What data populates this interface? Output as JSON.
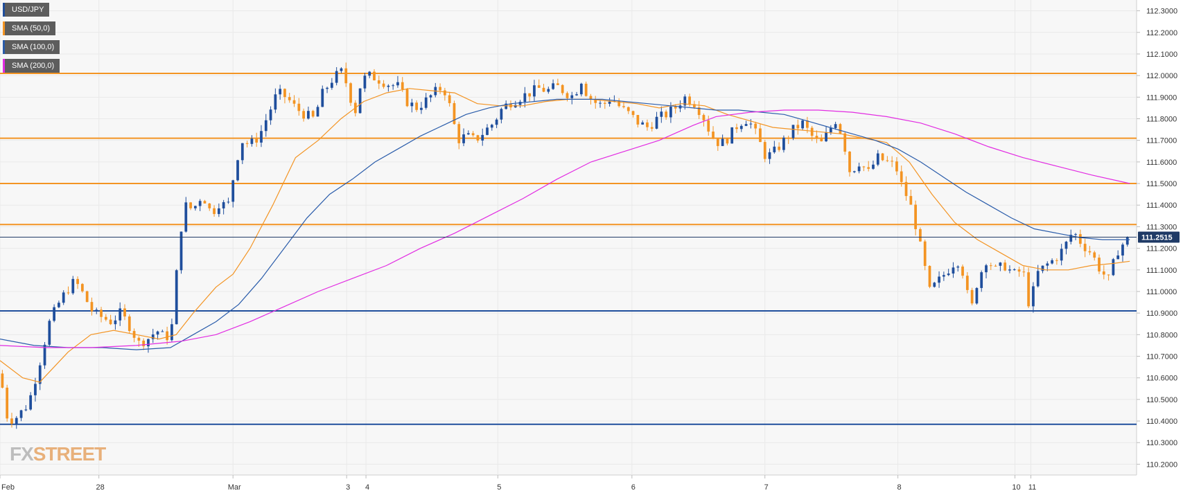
{
  "legend": {
    "symbol": "USD/JPY",
    "sma50": "SMA (50,0)",
    "sma100": "SMA (100,0)",
    "sma200": "SMA (200,0)"
  },
  "watermark": {
    "fx": "FX",
    "street": "STREET"
  },
  "colors": {
    "bull": "#1f4e9c",
    "bear": "#f39423",
    "sma50": "#f39423",
    "sma100": "#2a5caa",
    "sma200": "#e22be2",
    "resistance": "#f39423",
    "support": "#1f4e9c",
    "grid": "#e9e9e9",
    "price_tag_bg": "#1f3a66"
  },
  "chart_data": {
    "type": "candlestick",
    "symbol": "USD/JPY",
    "ylim": [
      110.15,
      112.35
    ],
    "y_ticks": [
      "112.3000",
      "112.2000",
      "112.1000",
      "112.0000",
      "111.9000",
      "111.8000",
      "111.7000",
      "111.6000",
      "111.5000",
      "111.4000",
      "111.3000",
      "111.2000",
      "111.1000",
      "111.0000",
      "110.9000",
      "110.8000",
      "110.7000",
      "110.6000",
      "110.5000",
      "110.4000",
      "110.3000",
      "110.2000"
    ],
    "x_ticks": [
      {
        "label": "Feb",
        "pos": 0.0
      },
      {
        "label": "28",
        "pos": 0.087
      },
      {
        "label": "Mar",
        "pos": 0.205
      },
      {
        "label": "3",
        "pos": 0.305
      },
      {
        "label": "4",
        "pos": 0.322
      },
      {
        "label": "5",
        "pos": 0.438
      },
      {
        "label": "6",
        "pos": 0.556
      },
      {
        "label": "7",
        "pos": 0.673
      },
      {
        "label": "8",
        "pos": 0.79
      },
      {
        "label": "10",
        "pos": 0.893
      },
      {
        "label": "11",
        "pos": 0.907
      }
    ],
    "current_price": "111.2515",
    "current_price_value": 111.2515,
    "horizontal_levels": [
      {
        "value": 112.01,
        "kind": "resistance"
      },
      {
        "value": 111.71,
        "kind": "resistance"
      },
      {
        "value": 111.5,
        "kind": "resistance"
      },
      {
        "value": 111.31,
        "kind": "resistance"
      },
      {
        "value": 110.91,
        "kind": "support"
      },
      {
        "value": 110.385,
        "kind": "support"
      }
    ],
    "close_path": [
      [
        0.0,
        110.62
      ],
      [
        0.007,
        110.4
      ],
      [
        0.015,
        110.42
      ],
      [
        0.025,
        110.48
      ],
      [
        0.034,
        110.65
      ],
      [
        0.043,
        110.85
      ],
      [
        0.05,
        110.93
      ],
      [
        0.058,
        111.0
      ],
      [
        0.066,
        111.05
      ],
      [
        0.074,
        110.98
      ],
      [
        0.082,
        110.9
      ],
      [
        0.09,
        110.88
      ],
      [
        0.098,
        110.86
      ],
      [
        0.106,
        110.9
      ],
      [
        0.114,
        110.84
      ],
      [
        0.122,
        110.76
      ],
      [
        0.13,
        110.78
      ],
      [
        0.138,
        110.82
      ],
      [
        0.146,
        110.78
      ],
      [
        0.152,
        110.85
      ],
      [
        0.157,
        111.2
      ],
      [
        0.162,
        111.4
      ],
      [
        0.17,
        111.38
      ],
      [
        0.178,
        111.45
      ],
      [
        0.186,
        111.36
      ],
      [
        0.194,
        111.42
      ],
      [
        0.2,
        111.38
      ],
      [
        0.206,
        111.55
      ],
      [
        0.212,
        111.7
      ],
      [
        0.22,
        111.68
      ],
      [
        0.228,
        111.72
      ],
      [
        0.236,
        111.82
      ],
      [
        0.244,
        111.92
      ],
      [
        0.252,
        111.9
      ],
      [
        0.26,
        111.85
      ],
      [
        0.268,
        111.82
      ],
      [
        0.276,
        111.8
      ],
      [
        0.284,
        111.92
      ],
      [
        0.292,
        111.98
      ],
      [
        0.3,
        112.02
      ],
      [
        0.306,
        111.95
      ],
      [
        0.312,
        111.82
      ],
      [
        0.318,
        111.98
      ],
      [
        0.326,
        112.0
      ],
      [
        0.334,
        111.98
      ],
      [
        0.342,
        111.96
      ],
      [
        0.35,
        111.95
      ],
      [
        0.358,
        111.88
      ],
      [
        0.366,
        111.85
      ],
      [
        0.374,
        111.88
      ],
      [
        0.382,
        111.92
      ],
      [
        0.39,
        111.95
      ],
      [
        0.398,
        111.82
      ],
      [
        0.402,
        111.7
      ],
      [
        0.41,
        111.72
      ],
      [
        0.418,
        111.7
      ],
      [
        0.426,
        111.74
      ],
      [
        0.434,
        111.78
      ],
      [
        0.442,
        111.85
      ],
      [
        0.45,
        111.88
      ],
      [
        0.458,
        111.9
      ],
      [
        0.466,
        111.92
      ],
      [
        0.474,
        111.94
      ],
      [
        0.482,
        111.93
      ],
      [
        0.49,
        111.95
      ],
      [
        0.498,
        111.92
      ],
      [
        0.506,
        111.9
      ],
      [
        0.51,
        112.0
      ],
      [
        0.516,
        111.92
      ],
      [
        0.522,
        111.88
      ],
      [
        0.53,
        111.86
      ],
      [
        0.538,
        111.9
      ],
      [
        0.546,
        111.85
      ],
      [
        0.554,
        111.82
      ],
      [
        0.562,
        111.78
      ],
      [
        0.57,
        111.76
      ],
      [
        0.578,
        111.8
      ],
      [
        0.586,
        111.82
      ],
      [
        0.594,
        111.85
      ],
      [
        0.602,
        111.9
      ],
      [
        0.61,
        111.88
      ],
      [
        0.618,
        111.82
      ],
      [
        0.626,
        111.72
      ],
      [
        0.634,
        111.68
      ],
      [
        0.642,
        111.72
      ],
      [
        0.65,
        111.78
      ],
      [
        0.658,
        111.8
      ],
      [
        0.666,
        111.72
      ],
      [
        0.674,
        111.62
      ],
      [
        0.682,
        111.65
      ],
      [
        0.69,
        111.7
      ],
      [
        0.698,
        111.75
      ],
      [
        0.706,
        111.78
      ],
      [
        0.714,
        111.72
      ],
      [
        0.722,
        111.68
      ],
      [
        0.73,
        111.75
      ],
      [
        0.736,
        111.8
      ],
      [
        0.742,
        111.7
      ],
      [
        0.748,
        111.55
      ],
      [
        0.756,
        111.6
      ],
      [
        0.764,
        111.55
      ],
      [
        0.772,
        111.62
      ],
      [
        0.78,
        111.6
      ],
      [
        0.788,
        111.58
      ],
      [
        0.794,
        111.48
      ],
      [
        0.8,
        111.42
      ],
      [
        0.806,
        111.3
      ],
      [
        0.812,
        111.15
      ],
      [
        0.818,
        111.0
      ],
      [
        0.826,
        111.05
      ],
      [
        0.834,
        111.1
      ],
      [
        0.842,
        111.15
      ],
      [
        0.848,
        111.08
      ],
      [
        0.854,
        110.9
      ],
      [
        0.86,
        111.05
      ],
      [
        0.868,
        111.15
      ],
      [
        0.876,
        111.1
      ],
      [
        0.884,
        111.12
      ],
      [
        0.892,
        111.08
      ],
      [
        0.9,
        111.1
      ],
      [
        0.906,
        110.92
      ],
      [
        0.912,
        111.08
      ],
      [
        0.92,
        111.12
      ],
      [
        0.928,
        111.15
      ],
      [
        0.936,
        111.2
      ],
      [
        0.944,
        111.28
      ],
      [
        0.952,
        111.22
      ],
      [
        0.96,
        111.18
      ],
      [
        0.968,
        111.1
      ],
      [
        0.976,
        111.05
      ],
      [
        0.982,
        111.18
      ],
      [
        0.988,
        111.22
      ],
      [
        0.994,
        111.25
      ]
    ],
    "series": [
      {
        "name": "SMA (50,0)",
        "color_key": "sma50",
        "points": [
          [
            0.0,
            110.68
          ],
          [
            0.02,
            110.6
          ],
          [
            0.035,
            110.58
          ],
          [
            0.06,
            110.72
          ],
          [
            0.08,
            110.8
          ],
          [
            0.1,
            110.82
          ],
          [
            0.12,
            110.8
          ],
          [
            0.14,
            110.78
          ],
          [
            0.155,
            110.8
          ],
          [
            0.17,
            110.9
          ],
          [
            0.19,
            111.02
          ],
          [
            0.205,
            111.08
          ],
          [
            0.22,
            111.2
          ],
          [
            0.24,
            111.4
          ],
          [
            0.26,
            111.62
          ],
          [
            0.28,
            111.7
          ],
          [
            0.3,
            111.8
          ],
          [
            0.32,
            111.88
          ],
          [
            0.34,
            111.92
          ],
          [
            0.36,
            111.94
          ],
          [
            0.38,
            111.93
          ],
          [
            0.4,
            111.92
          ],
          [
            0.42,
            111.87
          ],
          [
            0.44,
            111.86
          ],
          [
            0.46,
            111.86
          ],
          [
            0.48,
            111.88
          ],
          [
            0.5,
            111.89
          ],
          [
            0.52,
            111.89
          ],
          [
            0.54,
            111.88
          ],
          [
            0.56,
            111.87
          ],
          [
            0.58,
            111.85
          ],
          [
            0.6,
            111.87
          ],
          [
            0.62,
            111.86
          ],
          [
            0.64,
            111.82
          ],
          [
            0.66,
            111.79
          ],
          [
            0.68,
            111.76
          ],
          [
            0.7,
            111.75
          ],
          [
            0.72,
            111.74
          ],
          [
            0.74,
            111.73
          ],
          [
            0.76,
            111.71
          ],
          [
            0.78,
            111.69
          ],
          [
            0.8,
            111.6
          ],
          [
            0.82,
            111.45
          ],
          [
            0.84,
            111.32
          ],
          [
            0.86,
            111.24
          ],
          [
            0.88,
            111.18
          ],
          [
            0.9,
            111.12
          ],
          [
            0.92,
            111.1
          ],
          [
            0.94,
            111.1
          ],
          [
            0.96,
            111.12
          ],
          [
            0.98,
            111.13
          ],
          [
            0.994,
            111.14
          ]
        ]
      },
      {
        "name": "SMA (100,0)",
        "color_key": "sma100",
        "points": [
          [
            0.0,
            110.78
          ],
          [
            0.03,
            110.75
          ],
          [
            0.06,
            110.74
          ],
          [
            0.09,
            110.74
          ],
          [
            0.12,
            110.73
          ],
          [
            0.15,
            110.74
          ],
          [
            0.17,
            110.8
          ],
          [
            0.19,
            110.86
          ],
          [
            0.21,
            110.94
          ],
          [
            0.23,
            111.06
          ],
          [
            0.25,
            111.2
          ],
          [
            0.27,
            111.34
          ],
          [
            0.29,
            111.45
          ],
          [
            0.31,
            111.52
          ],
          [
            0.33,
            111.6
          ],
          [
            0.35,
            111.66
          ],
          [
            0.37,
            111.72
          ],
          [
            0.39,
            111.77
          ],
          [
            0.41,
            111.82
          ],
          [
            0.43,
            111.85
          ],
          [
            0.45,
            111.87
          ],
          [
            0.47,
            111.88
          ],
          [
            0.49,
            111.89
          ],
          [
            0.51,
            111.89
          ],
          [
            0.53,
            111.89
          ],
          [
            0.55,
            111.88
          ],
          [
            0.57,
            111.87
          ],
          [
            0.59,
            111.86
          ],
          [
            0.61,
            111.85
          ],
          [
            0.63,
            111.84
          ],
          [
            0.65,
            111.84
          ],
          [
            0.67,
            111.83
          ],
          [
            0.69,
            111.82
          ],
          [
            0.71,
            111.79
          ],
          [
            0.73,
            111.76
          ],
          [
            0.75,
            111.73
          ],
          [
            0.77,
            111.7
          ],
          [
            0.79,
            111.66
          ],
          [
            0.81,
            111.6
          ],
          [
            0.83,
            111.53
          ],
          [
            0.85,
            111.46
          ],
          [
            0.87,
            111.4
          ],
          [
            0.89,
            111.34
          ],
          [
            0.91,
            111.29
          ],
          [
            0.93,
            111.27
          ],
          [
            0.95,
            111.25
          ],
          [
            0.97,
            111.24
          ],
          [
            0.994,
            111.24
          ]
        ]
      },
      {
        "name": "SMA (200,0)",
        "color_key": "sma200",
        "points": [
          [
            0.0,
            110.75
          ],
          [
            0.04,
            110.74
          ],
          [
            0.08,
            110.74
          ],
          [
            0.12,
            110.75
          ],
          [
            0.16,
            110.77
          ],
          [
            0.19,
            110.8
          ],
          [
            0.22,
            110.86
          ],
          [
            0.25,
            110.93
          ],
          [
            0.28,
            111.0
          ],
          [
            0.31,
            111.06
          ],
          [
            0.34,
            111.12
          ],
          [
            0.37,
            111.2
          ],
          [
            0.4,
            111.27
          ],
          [
            0.43,
            111.35
          ],
          [
            0.46,
            111.43
          ],
          [
            0.49,
            111.52
          ],
          [
            0.52,
            111.6
          ],
          [
            0.55,
            111.65
          ],
          [
            0.58,
            111.7
          ],
          [
            0.61,
            111.77
          ],
          [
            0.63,
            111.81
          ],
          [
            0.66,
            111.83
          ],
          [
            0.69,
            111.84
          ],
          [
            0.72,
            111.84
          ],
          [
            0.75,
            111.83
          ],
          [
            0.78,
            111.81
          ],
          [
            0.81,
            111.78
          ],
          [
            0.84,
            111.73
          ],
          [
            0.87,
            111.67
          ],
          [
            0.9,
            111.62
          ],
          [
            0.93,
            111.58
          ],
          [
            0.96,
            111.54
          ],
          [
            0.994,
            111.5
          ]
        ]
      }
    ]
  }
}
